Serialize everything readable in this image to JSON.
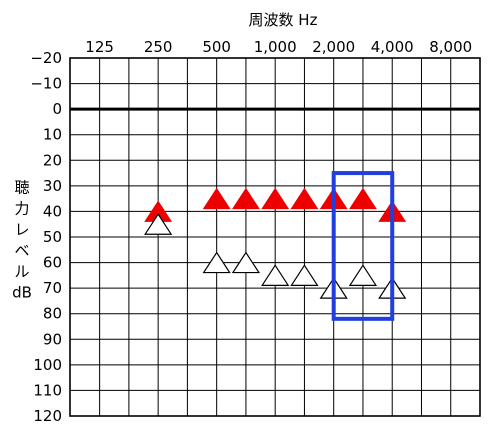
{
  "chart_data": {
    "type": "scatter",
    "title": "周波数 Hz",
    "ylabel": "聴力レベル dB",
    "xlabel": "",
    "x_scale": "log2",
    "x_ticks": [
      {
        "value": 125,
        "label": "125"
      },
      {
        "value": 250,
        "label": "250"
      },
      {
        "value": 500,
        "label": "500"
      },
      {
        "value": 1000,
        "label": "1,000"
      },
      {
        "value": 2000,
        "label": "2,000"
      },
      {
        "value": 4000,
        "label": "4,000"
      },
      {
        "value": 8000,
        "label": "8,000"
      }
    ],
    "y_ticks": [
      {
        "value": -20,
        "label": "−20"
      },
      {
        "value": -10,
        "label": "−10"
      },
      {
        "value": 0,
        "label": "0"
      },
      {
        "value": 10,
        "label": "10"
      },
      {
        "value": 20,
        "label": "20"
      },
      {
        "value": 30,
        "label": "30"
      },
      {
        "value": 40,
        "label": "40"
      },
      {
        "value": 50,
        "label": "50"
      },
      {
        "value": 60,
        "label": "60"
      },
      {
        "value": 70,
        "label": "70"
      },
      {
        "value": 80,
        "label": "80"
      },
      {
        "value": 90,
        "label": "90"
      },
      {
        "value": 100,
        "label": "100"
      },
      {
        "value": 110,
        "label": "110"
      },
      {
        "value": 120,
        "label": "120"
      }
    ],
    "ylim": [
      -20,
      120
    ],
    "y_inverted": true,
    "xlim": [
      88,
      11314
    ],
    "grid": true,
    "reference_line_y": 0,
    "series": [
      {
        "marker": "filled-triangle",
        "color": "#ee0000",
        "x": [
          250,
          500,
          707,
          1000,
          1414,
          2000,
          2828,
          4000
        ],
        "y": [
          40,
          35,
          35,
          35,
          35,
          35,
          35,
          40
        ]
      },
      {
        "marker": "open-triangle",
        "color": "#000000",
        "x": [
          250,
          500,
          707,
          1000,
          1414,
          2000,
          2828,
          4000
        ],
        "y": [
          45,
          60,
          60,
          65,
          65,
          70,
          65,
          70
        ]
      }
    ],
    "highlight": {
      "color": "#1f3fe0",
      "x_range": [
        2000,
        4000
      ],
      "y_range": [
        25,
        82
      ]
    }
  }
}
